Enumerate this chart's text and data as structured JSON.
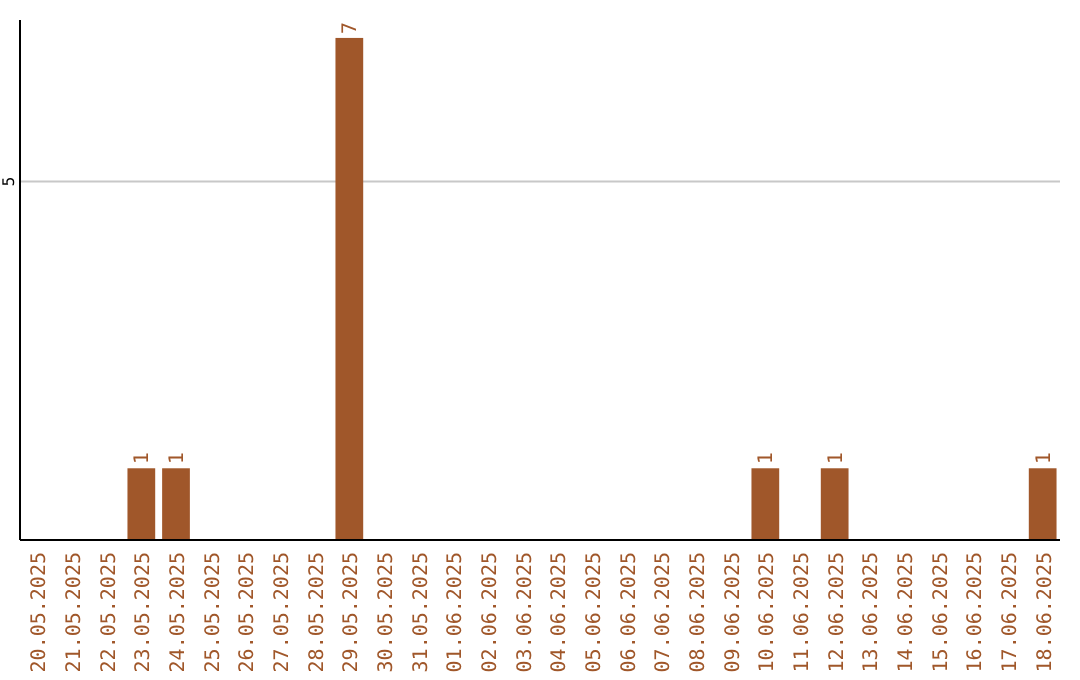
{
  "chart_data": {
    "type": "bar",
    "categories": [
      "20.05.2025",
      "21.05.2025",
      "22.05.2025",
      "23.05.2025",
      "24.05.2025",
      "25.05.2025",
      "26.05.2025",
      "27.05.2025",
      "28.05.2025",
      "29.05.2025",
      "30.05.2025",
      "31.05.2025",
      "01.06.2025",
      "02.06.2025",
      "03.06.2025",
      "04.06.2025",
      "05.06.2025",
      "06.06.2025",
      "07.06.2025",
      "08.06.2025",
      "09.06.2025",
      "10.06.2025",
      "11.06.2025",
      "12.06.2025",
      "13.06.2025",
      "14.06.2025",
      "15.06.2025",
      "16.06.2025",
      "17.06.2025",
      "18.06.2025"
    ],
    "values": [
      0,
      0,
      0,
      1,
      1,
      0,
      0,
      0,
      0,
      7,
      0,
      0,
      0,
      0,
      0,
      0,
      0,
      0,
      0,
      0,
      0,
      1,
      0,
      1,
      0,
      0,
      0,
      0,
      0,
      1
    ],
    "value_labels": [
      null,
      null,
      null,
      "1",
      "1",
      null,
      null,
      null,
      null,
      "7",
      null,
      null,
      null,
      null,
      null,
      null,
      null,
      null,
      null,
      null,
      null,
      "1",
      null,
      "1",
      null,
      null,
      null,
      null,
      null,
      "1"
    ],
    "color": "#a0572a",
    "ylim": [
      0,
      7.25
    ],
    "yticks": [
      5
    ],
    "grid": "y"
  }
}
